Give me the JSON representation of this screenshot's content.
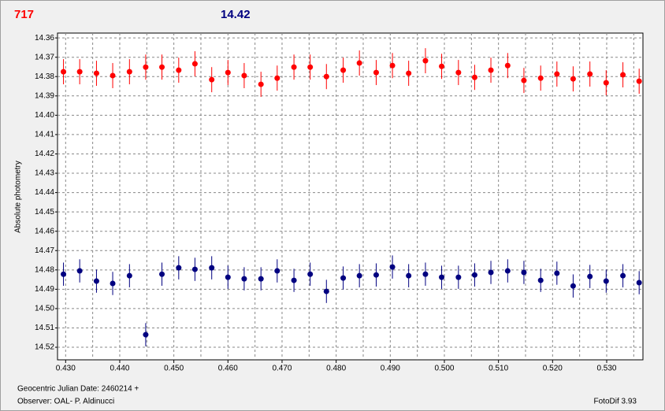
{
  "chart_data": {
    "type": "scatter",
    "y_label": "Absolute photometry",
    "x_caption": "Geocentric Julian Date: 2460214 +",
    "observer": "Observer: OAL- P. Aldinucci",
    "software": "FotoDif 3.93",
    "xlim": [
      0.4285,
      0.5367
    ],
    "ylim": [
      14.3575,
      14.5265
    ],
    "y_inverted": true,
    "grid": true,
    "xticks": [
      {
        "value": 0.43,
        "label": "0.430"
      },
      {
        "value": 0.44,
        "label": "0.440"
      },
      {
        "value": 0.45,
        "label": "0.450"
      },
      {
        "value": 0.46,
        "label": "0.460"
      },
      {
        "value": 0.47,
        "label": "0.470"
      },
      {
        "value": 0.48,
        "label": "0.480"
      },
      {
        "value": 0.49,
        "label": "0.490"
      },
      {
        "value": 0.5,
        "label": "0.500"
      },
      {
        "value": 0.51,
        "label": "0.510"
      },
      {
        "value": 0.52,
        "label": "0.520"
      },
      {
        "value": 0.53,
        "label": "0.530"
      }
    ],
    "xminorticks": [
      0.435,
      0.445,
      0.455,
      0.465,
      0.475,
      0.485,
      0.495,
      0.505,
      0.515,
      0.525,
      0.535
    ],
    "yticks": [
      14.36,
      14.37,
      14.38,
      14.39,
      {
        "value": 14.4,
        "label": "14.40"
      },
      14.41,
      14.42,
      14.43,
      14.44,
      14.45,
      14.46,
      14.47,
      14.48,
      14.49,
      {
        "value": 14.5,
        "label": "14.50"
      },
      14.51,
      14.52
    ],
    "x": [
      0.4296,
      0.4326,
      0.4357,
      0.4387,
      0.4418,
      0.4448,
      0.4478,
      0.4509,
      0.4539,
      0.457,
      0.46,
      0.463,
      0.4661,
      0.4691,
      0.4722,
      0.4752,
      0.4782,
      0.4813,
      0.4843,
      0.4874,
      0.4904,
      0.4934,
      0.4965,
      0.4995,
      0.5026,
      0.5056,
      0.5086,
      0.5117,
      0.5147,
      0.5178,
      0.5208,
      0.5238,
      0.5269,
      0.5299,
      0.533,
      0.536
    ],
    "series": [
      {
        "name": "717",
        "color": "#ff0000",
        "values": [
          14.3775,
          14.3775,
          14.3783,
          14.3795,
          14.3775,
          14.3751,
          14.3751,
          14.3767,
          14.3734,
          14.3816,
          14.3779,
          14.3795,
          14.384,
          14.3808,
          14.3751,
          14.3751,
          14.38,
          14.3767,
          14.373,
          14.3779,
          14.3743,
          14.3783,
          14.3718,
          14.3747,
          14.3779,
          14.3804,
          14.3767,
          14.3743,
          14.382,
          14.3808,
          14.3787,
          14.3812,
          14.3787,
          14.3832,
          14.3791,
          14.3824
        ],
        "errors": [
          0.0065,
          0.0065,
          0.0065,
          0.0065,
          0.0065,
          0.0065,
          0.0065,
          0.0065,
          0.0065,
          0.0065,
          0.0065,
          0.0065,
          0.0065,
          0.0065,
          0.0065,
          0.0065,
          0.0065,
          0.0065,
          0.0065,
          0.0065,
          0.0065,
          0.0065,
          0.0065,
          0.0065,
          0.0065,
          0.0065,
          0.0065,
          0.0065,
          0.0065,
          0.0065,
          0.0065,
          0.0065,
          0.0065,
          0.0065,
          0.0065,
          0.0065
        ]
      },
      {
        "name": "14.42",
        "color": "#000080",
        "values": [
          14.4822,
          14.4805,
          14.4858,
          14.487,
          14.483,
          14.5135,
          14.4822,
          14.4789,
          14.4797,
          14.4789,
          14.4838,
          14.4846,
          14.4846,
          14.4805,
          14.4854,
          14.4822,
          14.4911,
          14.4842,
          14.483,
          14.4826,
          14.4785,
          14.483,
          14.4822,
          14.4838,
          14.4838,
          14.4826,
          14.4813,
          14.4805,
          14.4813,
          14.4854,
          14.4817,
          14.4883,
          14.4834,
          14.4858,
          14.483,
          14.4866
        ],
        "errors": [
          0.006,
          0.006,
          0.006,
          0.006,
          0.006,
          0.006,
          0.006,
          0.006,
          0.006,
          0.006,
          0.006,
          0.006,
          0.006,
          0.006,
          0.006,
          0.006,
          0.006,
          0.006,
          0.006,
          0.006,
          0.006,
          0.006,
          0.006,
          0.006,
          0.006,
          0.006,
          0.006,
          0.006,
          0.006,
          0.006,
          0.006,
          0.006,
          0.006,
          0.006,
          0.006,
          0.006
        ]
      }
    ]
  }
}
